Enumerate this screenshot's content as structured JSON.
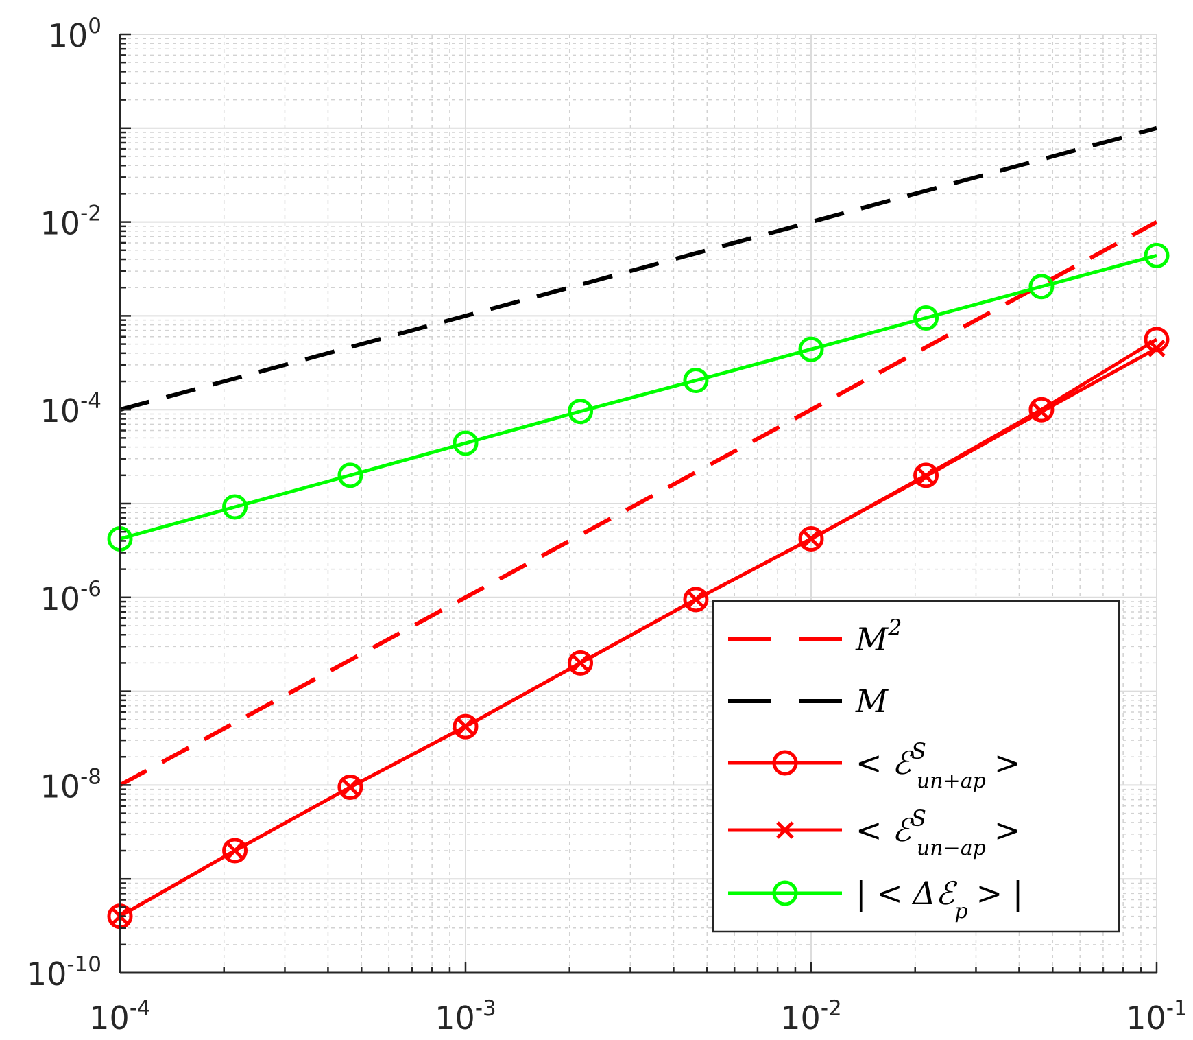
{
  "chart_data": {
    "type": "line",
    "title": "",
    "xlabel": "",
    "ylabel": "",
    "xscale": "log",
    "yscale": "log",
    "xlim": [
      0.0001,
      0.1
    ],
    "ylim": [
      1e-10,
      1
    ],
    "grid": true,
    "minor_grid": true,
    "legend_position": "bottom-right",
    "x_ticks": [
      {
        "value": 0.0001,
        "base": "10",
        "exp": "-4"
      },
      {
        "value": 0.001,
        "base": "10",
        "exp": "-3"
      },
      {
        "value": 0.01,
        "base": "10",
        "exp": "-2"
      },
      {
        "value": 0.1,
        "base": "10",
        "exp": "-1"
      }
    ],
    "y_ticks": [
      {
        "value": 1e-10,
        "base": "10",
        "exp": "-10"
      },
      {
        "value": 1e-08,
        "base": "10",
        "exp": "-8"
      },
      {
        "value": 1e-06,
        "base": "10",
        "exp": "-6"
      },
      {
        "value": 0.0001,
        "base": "10",
        "exp": "-4"
      },
      {
        "value": 0.01,
        "base": "10",
        "exp": "-2"
      },
      {
        "value": 1,
        "base": "10",
        "exp": "0"
      }
    ],
    "series": [
      {
        "name": "M^2",
        "color": "#ff0000",
        "style": "dashed",
        "marker": "none",
        "x": [
          0.0001,
          0.1
        ],
        "y": [
          1e-08,
          0.01
        ]
      },
      {
        "name": "M",
        "color": "#000000",
        "style": "dashed",
        "marker": "none",
        "x": [
          0.0001,
          0.1
        ],
        "y": [
          0.0001,
          0.1
        ]
      },
      {
        "name": "< E^S_{u_n+a_p} >",
        "color": "#ff0000",
        "style": "solid",
        "marker": "circle",
        "x": [
          0.0001,
          0.000215,
          0.000464,
          0.001,
          0.00215,
          0.00464,
          0.01,
          0.0215,
          0.0464,
          0.1
        ],
        "y": [
          4e-10,
          2e-09,
          9.5e-09,
          4.2e-08,
          2e-07,
          9.5e-07,
          4.2e-06,
          2e-05,
          0.0001,
          0.00056
        ]
      },
      {
        "name": "< E^S_{u_n-a_p} >",
        "color": "#ff0000",
        "style": "solid",
        "marker": "x",
        "x": [
          0.0001,
          0.000215,
          0.000464,
          0.001,
          0.00215,
          0.00464,
          0.01,
          0.0215,
          0.0464,
          0.1
        ],
        "y": [
          4e-10,
          2e-09,
          9.5e-09,
          4.2e-08,
          2e-07,
          9.5e-07,
          4.2e-06,
          1.95e-05,
          9.5e-05,
          0.00045
        ]
      },
      {
        "name": "|< ΔE_p >|",
        "color": "#00ff00",
        "style": "solid",
        "marker": "circle",
        "x": [
          0.0001,
          0.000215,
          0.000464,
          0.001,
          0.00215,
          0.00464,
          0.01,
          0.0215,
          0.0464,
          0.1
        ],
        "y": [
          4.2e-06,
          9.2e-06,
          2e-05,
          4.4e-05,
          9.6e-05,
          0.000205,
          0.00044,
          0.00095,
          0.00205,
          0.0044
        ]
      }
    ]
  },
  "legend": {
    "entries": [
      {
        "base": "M",
        "sup": "2",
        "sub": ""
      },
      {
        "base": "M",
        "sup": "",
        "sub": ""
      },
      {
        "base": "< ℰ",
        "sup": "S",
        "sub": "un+ap",
        "tail": ">"
      },
      {
        "base": "< ℰ",
        "sup": "S",
        "sub": "un−ap",
        "tail": ">"
      },
      {
        "base": "| < Δℰ",
        "sup": "",
        "sub": "p",
        "tail": "> |"
      }
    ]
  }
}
